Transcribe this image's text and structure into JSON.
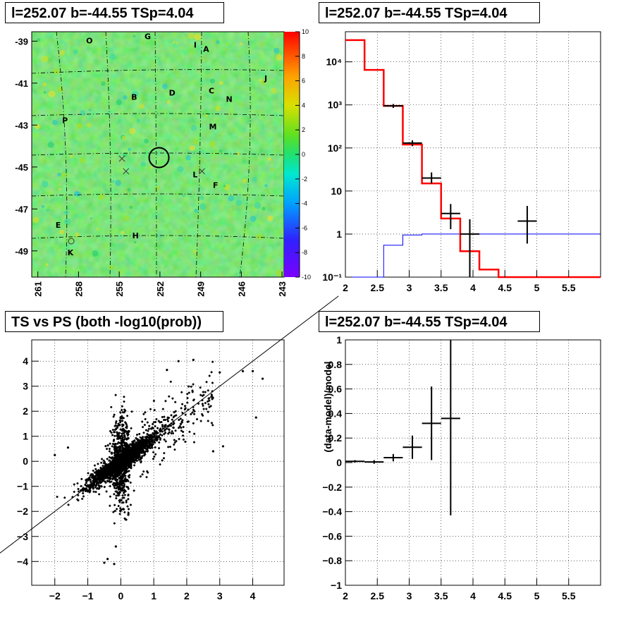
{
  "panels": {
    "top_left_title": "l=252.07 b=-44.55 TSp=4.04",
    "top_right_title": "l=252.07 b=-44.55 TSp=4.04",
    "bottom_left_title": "TS vs PS (both -log10(prob))",
    "bottom_right_title": "l=252.07 b=-44.55 TSp=4.04"
  },
  "chart_data": [
    {
      "type": "heatmap",
      "x_ticks": [
        "261",
        "258",
        "255",
        "252",
        "249",
        "246",
        "243"
      ],
      "y_ticks": [
        "-39",
        "-41",
        "-43",
        "-45",
        "-47",
        "-49"
      ],
      "colorbar_ticks": [
        "10",
        "8",
        "6",
        "4",
        "2",
        "0",
        "-2",
        "-4",
        "-6",
        "-8",
        "-10"
      ],
      "zlim": [
        -10,
        10
      ],
      "source_labels": [
        {
          "text": "O",
          "l": 257.2,
          "b": -39.1
        },
        {
          "text": "G",
          "l": 252.9,
          "b": -38.9
        },
        {
          "text": "I",
          "l": 249.4,
          "b": -39.3
        },
        {
          "text": "A",
          "l": 248.6,
          "b": -39.5
        },
        {
          "text": "J",
          "l": 244.2,
          "b": -40.9
        },
        {
          "text": "B",
          "l": 253.9,
          "b": -41.8
        },
        {
          "text": "D",
          "l": 251.1,
          "b": -41.6
        },
        {
          "text": "C",
          "l": 248.2,
          "b": -41.5
        },
        {
          "text": "N",
          "l": 246.9,
          "b": -41.9
        },
        {
          "text": "P",
          "l": 259.0,
          "b": -42.9
        },
        {
          "text": "M",
          "l": 248.1,
          "b": -43.2
        },
        {
          "text": "L",
          "l": 249.4,
          "b": -45.5
        },
        {
          "text": "F",
          "l": 247.9,
          "b": -46.0
        },
        {
          "text": "E",
          "l": 259.5,
          "b": -47.9
        },
        {
          "text": "H",
          "l": 253.8,
          "b": -48.4
        },
        {
          "text": "K",
          "l": 258.6,
          "b": -49.2
        }
      ],
      "cross_markers": [
        {
          "l": 254.8,
          "b": -44.6
        },
        {
          "l": 254.5,
          "b": -45.2
        },
        {
          "l": 248.9,
          "b": -45.2
        }
      ],
      "circle_markers": [
        {
          "l": 252.07,
          "b": -44.55
        }
      ]
    },
    {
      "type": "line",
      "ylog": true,
      "xlim": [
        2,
        6
      ],
      "ylim": [
        0.1,
        50000
      ],
      "x_ticks": [
        "2",
        "2.5",
        "3",
        "3.5",
        "4",
        "4.5",
        "5",
        "5.5"
      ],
      "y_ticks": [
        "10⁻¹",
        "1",
        "10",
        "10²",
        "10³",
        "10⁴"
      ],
      "y_tick_values": [
        0.1,
        1,
        10,
        100,
        1000,
        10000
      ],
      "bin_edges": [
        2.0,
        2.3,
        2.6,
        2.9,
        3.2,
        3.5,
        3.8,
        4.1,
        4.4,
        6.0
      ],
      "series": [
        {
          "color": "#ff0000",
          "values": [
            32000,
            6500,
            950,
            120,
            15,
            2.3,
            0.4,
            0.15,
            0.1
          ]
        },
        {
          "color": "#0000ff",
          "values": [
            0.1,
            0.1,
            0.55,
            0.95,
            1.0,
            1.0,
            1.0,
            1.0,
            1.0
          ]
        },
        {
          "color": "#000000",
          "points": [
            {
              "x": 2.75,
              "xerr": 0.15,
              "y": 950,
              "ylo": 850,
              "yhi": 1050
            },
            {
              "x": 3.05,
              "xerr": 0.15,
              "y": 130,
              "ylo": 110,
              "yhi": 150
            },
            {
              "x": 3.35,
              "xerr": 0.15,
              "y": 20,
              "ylo": 15,
              "yhi": 27
            },
            {
              "x": 3.65,
              "xerr": 0.15,
              "y": 3,
              "ylo": 1.3,
              "yhi": 5
            },
            {
              "x": 3.95,
              "xerr": 0.15,
              "y": 1,
              "ylo": 0.1,
              "yhi": 2.2
            },
            {
              "x": 4.85,
              "xerr": 0.15,
              "y": 2,
              "ylo": 0.6,
              "yhi": 4.5
            }
          ]
        }
      ]
    },
    {
      "type": "scatter",
      "xlim": [
        -2.7,
        4.95
      ],
      "ylim": [
        -4.95,
        4.85
      ],
      "x_ticks": [
        "−2",
        "−1",
        "0",
        "1",
        "2",
        "3",
        "4"
      ],
      "x_tick_values": [
        -2,
        -1,
        0,
        1,
        2,
        3,
        4
      ],
      "y_ticks": [
        "−4",
        "−3",
        "−2",
        "−1",
        "0",
        "1",
        "2",
        "3",
        "4"
      ],
      "y_tick_values": [
        -4,
        -3,
        -2,
        -1,
        0,
        1,
        2,
        3,
        4
      ],
      "reference_line": {
        "slope": 1,
        "intercept": 0
      },
      "marker_color": "#000000",
      "outliers": [
        {
          "x": 3.7,
          "y": 3.6
        },
        {
          "x": 4.0,
          "y": 3.6
        },
        {
          "x": 4.3,
          "y": 3.3
        },
        {
          "x": 4.1,
          "y": 1.75
        },
        {
          "x": 2.2,
          "y": 4.05
        },
        {
          "x": 1.75,
          "y": 4.0
        },
        {
          "x": 3.0,
          "y": 3.55
        },
        {
          "x": 1.4,
          "y": 3.65
        },
        {
          "x": -0.4,
          "y": -3.9
        },
        {
          "x": -0.2,
          "y": -4.1
        },
        {
          "x": -0.5,
          "y": -4.05
        },
        {
          "x": -0.15,
          "y": -3.4
        },
        {
          "x": -2.0,
          "y": 0.25
        },
        {
          "x": -1.6,
          "y": 0.55
        },
        {
          "x": 3.1,
          "y": 0.6
        },
        {
          "x": 2.8,
          "y": 0.4
        }
      ]
    },
    {
      "type": "scatter",
      "ylabel": "(data-model)/model",
      "xlim": [
        2,
        6
      ],
      "ylim": [
        -1,
        1
      ],
      "x_ticks": [
        "2",
        "2.5",
        "3",
        "3.5",
        "4",
        "4.5",
        "5",
        "5.5"
      ],
      "x_tick_values": [
        2,
        2.5,
        3,
        3.5,
        4,
        4.5,
        5,
        5.5
      ],
      "y_ticks": [
        "−1",
        "−0.8",
        "−0.6",
        "−0.4",
        "−0.2",
        "0",
        "0.2",
        "0.4",
        "0.6",
        "0.8",
        "1"
      ],
      "y_tick_values": [
        -1,
        -0.8,
        -0.6,
        -0.4,
        -0.2,
        0,
        0.2,
        0.4,
        0.6,
        0.8,
        1
      ],
      "points": [
        {
          "x": 2.15,
          "xerr": 0.15,
          "y": 0.01,
          "ylo": 0.0,
          "yhi": 0.02
        },
        {
          "x": 2.45,
          "xerr": 0.15,
          "y": 0.005,
          "ylo": -0.01,
          "yhi": 0.02
        },
        {
          "x": 2.75,
          "xerr": 0.15,
          "y": 0.04,
          "ylo": 0.01,
          "yhi": 0.07
        },
        {
          "x": 3.05,
          "xerr": 0.15,
          "y": 0.125,
          "ylo": 0.03,
          "yhi": 0.22
        },
        {
          "x": 3.35,
          "xerr": 0.15,
          "y": 0.32,
          "ylo": 0.02,
          "yhi": 0.62
        },
        {
          "x": 3.65,
          "xerr": 0.15,
          "y": 0.36,
          "ylo": -0.43,
          "yhi": 1.0
        }
      ]
    }
  ],
  "colors": {
    "red": "#ff0000",
    "blue": "#0000ff",
    "axis": "#000000",
    "grid": "#000000"
  }
}
